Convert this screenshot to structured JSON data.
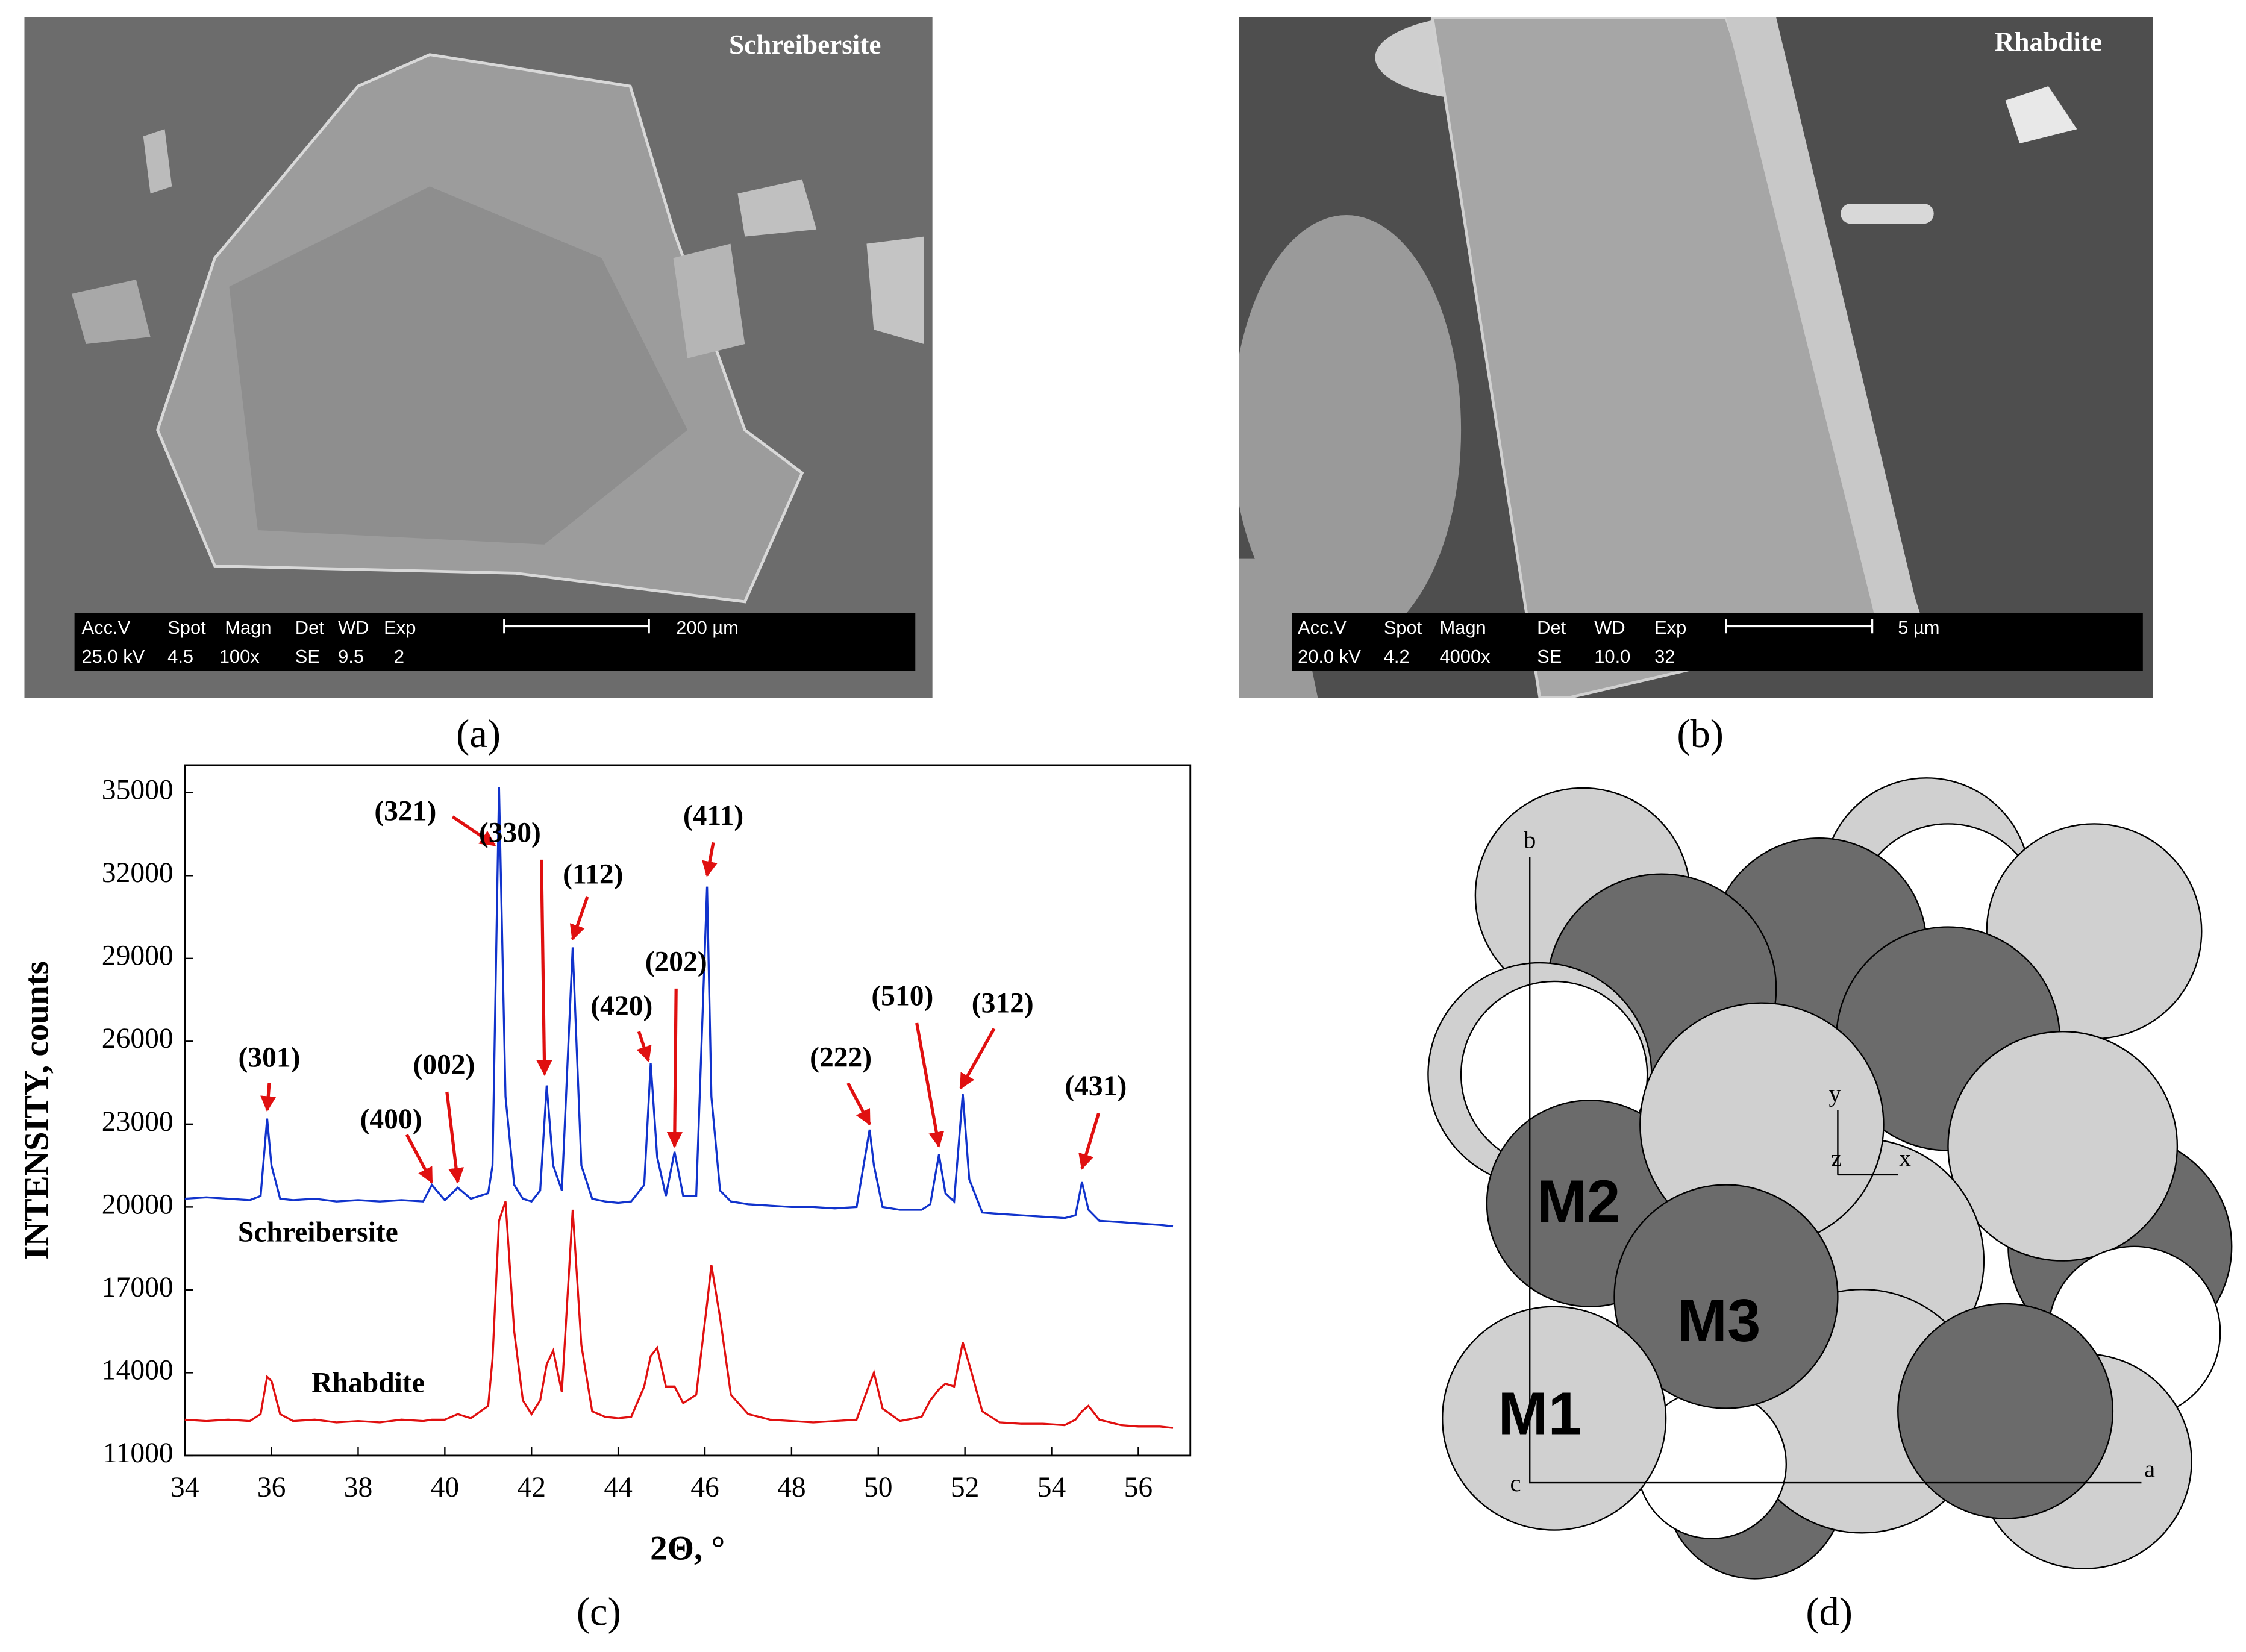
{
  "panel_labels": [
    "(a)",
    "(b)",
    "(c)",
    "(d)"
  ],
  "image_a": {
    "caption": "Schreibersite",
    "info_header": [
      "Acc.V",
      "Spot",
      "Magn",
      "Det",
      "WD",
      "Exp"
    ],
    "info_values": [
      "25.0 kV",
      "4.5",
      "100x",
      "SE",
      "9.5",
      "2"
    ],
    "scale": "200 µm"
  },
  "image_b": {
    "caption": "Rhabdite",
    "info_header": [
      "Acc.V",
      "Spot",
      "Magn",
      "Det",
      "WD",
      "Exp"
    ],
    "info_values": [
      "20.0 kV",
      "4.2",
      "4000x",
      "SE",
      "10.0",
      "32"
    ],
    "scale": "5 µm"
  },
  "chart_data": {
    "type": "line",
    "x_label": "2Θ, °",
    "y_label": "INTENSITY, counts",
    "xlim": [
      34,
      57.2
    ],
    "ylim": [
      11000,
      36000
    ],
    "xticks": [
      34,
      36,
      38,
      40,
      42,
      44,
      46,
      48,
      50,
      52,
      54,
      56
    ],
    "yticks": [
      11000,
      14000,
      17000,
      20000,
      23000,
      26000,
      29000,
      32000,
      35000
    ],
    "x": [
      34,
      34.5,
      35,
      35.5,
      35.75,
      35.9,
      36.0,
      36.2,
      36.5,
      37,
      37.5,
      38,
      38.5,
      39,
      39.5,
      39.7,
      40,
      40.3,
      40.6,
      41,
      41.1,
      41.25,
      41.4,
      41.6,
      41.8,
      42,
      42.2,
      42.35,
      42.5,
      42.7,
      42.95,
      43.15,
      43.4,
      43.7,
      44,
      44.3,
      44.6,
      44.75,
      44.9,
      45.1,
      45.3,
      45.5,
      45.8,
      46.05,
      46.15,
      46.35,
      46.6,
      47,
      47.5,
      48,
      48.5,
      49,
      49.5,
      49.8,
      49.9,
      50.1,
      50.5,
      51,
      51.2,
      51.4,
      51.55,
      51.75,
      51.95,
      52.1,
      52.4,
      52.8,
      53.3,
      53.8,
      54.3,
      54.55,
      54.7,
      54.85,
      55.1,
      55.6,
      56,
      56.5,
      56.8
    ],
    "series": [
      {
        "name": "Schreibersite",
        "color": "#1133cc",
        "values": [
          20300,
          20350,
          20300,
          20250,
          20400,
          23200,
          21500,
          20300,
          20250,
          20300,
          20200,
          20250,
          20200,
          20250,
          20200,
          20800,
          20250,
          20700,
          20300,
          20500,
          21500,
          35200,
          24000,
          20800,
          20300,
          20200,
          20600,
          24400,
          21500,
          20600,
          29400,
          21500,
          20300,
          20200,
          20150,
          20200,
          20800,
          25200,
          21800,
          20400,
          22000,
          20400,
          20400,
          31600,
          24000,
          20600,
          20200,
          20100,
          20050,
          20000,
          20000,
          19950,
          20000,
          22800,
          21500,
          20000,
          19900,
          19900,
          20100,
          21900,
          20500,
          20200,
          24100,
          21000,
          19800,
          19750,
          19700,
          19650,
          19600,
          19700,
          20900,
          19900,
          19500,
          19450,
          19400,
          19350,
          19300
        ]
      },
      {
        "name": "Rhabdite",
        "color": "#e01010",
        "values": [
          12300,
          12250,
          12300,
          12250,
          12500,
          13850,
          13700,
          12500,
          12250,
          12300,
          12200,
          12250,
          12200,
          12300,
          12250,
          12300,
          12300,
          12500,
          12350,
          12800,
          14500,
          19500,
          20200,
          15500,
          13000,
          12500,
          13000,
          14300,
          14800,
          13300,
          19900,
          15000,
          12600,
          12400,
          12350,
          12400,
          13500,
          14600,
          14900,
          13500,
          13500,
          12900,
          13200,
          16500,
          17900,
          16000,
          13200,
          12500,
          12300,
          12250,
          12200,
          12250,
          12300,
          13600,
          14000,
          12700,
          12250,
          12400,
          13000,
          13400,
          13600,
          13500,
          15100,
          14300,
          12600,
          12200,
          12150,
          12150,
          12100,
          12300,
          12600,
          12800,
          12300,
          12100,
          12050,
          12050,
          12000
        ]
      }
    ],
    "annotations": [
      {
        "text": "(301)",
        "x": 35.9,
        "y": 23500
      },
      {
        "text": "(400)",
        "x": 39.7,
        "y": 20900
      },
      {
        "text": "(002)",
        "x": 40.3,
        "y": 20900
      },
      {
        "text": "(321)",
        "x": 41.15,
        "y": 33100
      },
      {
        "text": "(330)",
        "x": 42.3,
        "y": 24800
      },
      {
        "text": "(112)",
        "x": 42.95,
        "y": 29700
      },
      {
        "text": "(420)",
        "x": 44.7,
        "y": 25300
      },
      {
        "text": "(202)",
        "x": 45.3,
        "y": 22200
      },
      {
        "text": "(411)",
        "x": 46.05,
        "y": 32000
      },
      {
        "text": "(222)",
        "x": 49.8,
        "y": 23000
      },
      {
        "text": "(510)",
        "x": 51.4,
        "y": 22200
      },
      {
        "text": "(312)",
        "x": 51.9,
        "y": 24300
      },
      {
        "text": "(431)",
        "x": 54.7,
        "y": 21400
      }
    ]
  },
  "structure": {
    "atoms": [
      "M1",
      "M2",
      "M3"
    ],
    "axes": [
      "a",
      "b",
      "c"
    ],
    "local_axes": [
      "x",
      "y",
      "z"
    ]
  }
}
